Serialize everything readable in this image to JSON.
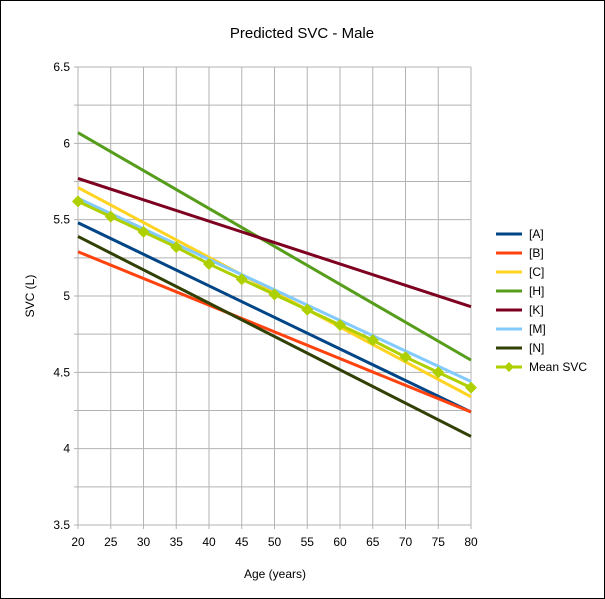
{
  "chart_data": {
    "type": "line",
    "title": "Predicted SVC - Male",
    "xlabel": "Age (years)",
    "ylabel": "SVC (L)",
    "xlim": [
      20,
      80
    ],
    "ylim": [
      3.5,
      6.5
    ],
    "xticks": [
      20,
      25,
      30,
      35,
      40,
      45,
      50,
      55,
      60,
      65,
      70,
      75,
      80
    ],
    "yticks": [
      3.5,
      4,
      4.5,
      5,
      5.5,
      6,
      6.5
    ],
    "ytick_labels": [
      "3.5",
      "4",
      "4.5",
      "5",
      "5.5",
      "6",
      "6.5"
    ],
    "grid": true,
    "legend_position": "right",
    "series": [
      {
        "name": "[A]",
        "color": "#004586",
        "x": [
          20,
          80
        ],
        "y": [
          5.48,
          4.24
        ],
        "markers": false
      },
      {
        "name": "[B]",
        "color": "#ff420e",
        "x": [
          20,
          80
        ],
        "y": [
          5.29,
          4.24
        ],
        "markers": false
      },
      {
        "name": "[C]",
        "color": "#ffd320",
        "x": [
          20,
          80
        ],
        "y": [
          5.71,
          4.34
        ],
        "markers": false
      },
      {
        "name": "[H]",
        "color": "#579d1c",
        "x": [
          20,
          80
        ],
        "y": [
          6.07,
          4.58
        ],
        "markers": false
      },
      {
        "name": "[K]",
        "color": "#7e0021",
        "x": [
          20,
          80
        ],
        "y": [
          5.77,
          4.93
        ],
        "markers": false
      },
      {
        "name": "[M]",
        "color": "#83caff",
        "x": [
          20,
          80
        ],
        "y": [
          5.64,
          4.44
        ],
        "markers": false
      },
      {
        "name": "[N]",
        "color": "#314004",
        "x": [
          20,
          80
        ],
        "y": [
          5.39,
          4.08
        ],
        "markers": false
      },
      {
        "name": "Mean SVC",
        "color": "#aecf00",
        "x": [
          20,
          25,
          30,
          35,
          40,
          45,
          50,
          55,
          60,
          65,
          70,
          75,
          80
        ],
        "y": [
          5.62,
          5.52,
          5.42,
          5.32,
          5.21,
          5.11,
          5.01,
          4.91,
          4.81,
          4.71,
          4.6,
          4.5,
          4.4
        ],
        "markers": true
      }
    ]
  }
}
